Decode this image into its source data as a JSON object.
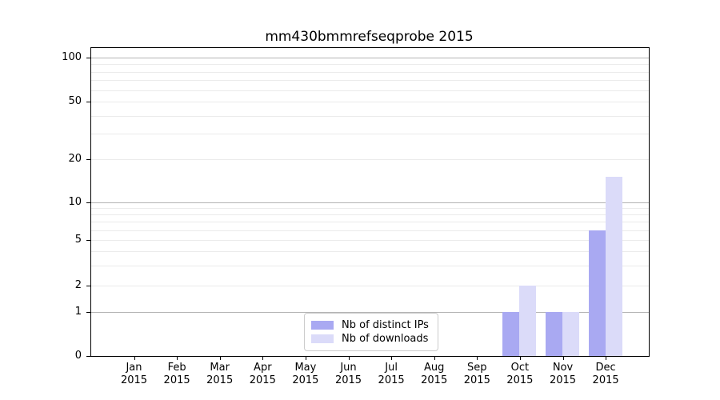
{
  "figure": {
    "title": "mm430bmmrefseqprobe 2015"
  },
  "chart_data": {
    "type": "bar",
    "title": "mm430bmmrefseqprobe 2015",
    "categories": [
      "Jan 2015",
      "Feb 2015",
      "Mar 2015",
      "Apr 2015",
      "May 2015",
      "Jun 2015",
      "Jul 2015",
      "Aug 2015",
      "Sep 2015",
      "Oct 2015",
      "Nov 2015",
      "Dec 2015"
    ],
    "months": [
      "Jan",
      "Feb",
      "Mar",
      "Apr",
      "May",
      "Jun",
      "Jul",
      "Aug",
      "Sep",
      "Oct",
      "Nov",
      "Dec"
    ],
    "year_label": "2015",
    "series": [
      {
        "name": "Nb of distinct IPs",
        "color": "#a9a9f2",
        "values": [
          0,
          0,
          0,
          0,
          0,
          0,
          0,
          0,
          0,
          1,
          1,
          6
        ]
      },
      {
        "name": "Nb of downloads",
        "color": "#dbdbf9",
        "values": [
          0,
          0,
          0,
          0,
          0,
          0,
          0,
          0,
          0,
          2,
          1,
          15
        ]
      }
    ],
    "ytick_labels": [
      "0",
      "1",
      "2",
      "5",
      "10",
      "20",
      "50",
      "100"
    ],
    "ytick_values": [
      0,
      1,
      2,
      5,
      10,
      20,
      50,
      100
    ],
    "major_gridline_values": [
      1,
      10,
      100
    ],
    "minor_gridline_values": [
      2,
      3,
      4,
      5,
      6,
      7,
      8,
      9,
      20,
      30,
      40,
      50,
      60,
      70,
      80,
      90
    ],
    "ylim": [
      0,
      100
    ],
    "scale": "log above 1, linear segment 0-1",
    "grid": "horizontal only",
    "legend": {
      "position": "lower center",
      "entries": [
        "Nb of distinct IPs",
        "Nb of downloads"
      ]
    }
  },
  "colors": {
    "bar_distinct_ips": "#a9a9f2",
    "bar_downloads": "#dbdbf9",
    "major_grid": "#b4b4b4",
    "minor_grid": "#ebebeb",
    "axis": "#000000",
    "legend_border": "#cccccc"
  }
}
